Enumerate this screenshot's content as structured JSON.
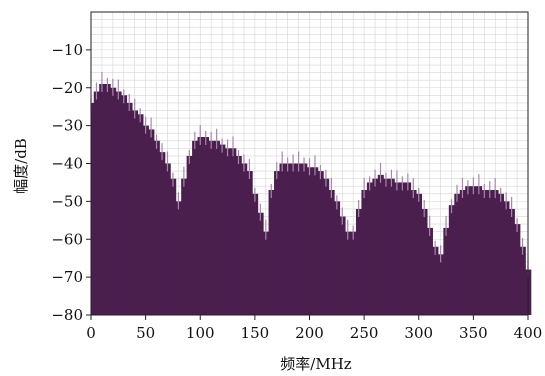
{
  "chart_data": {
    "type": "area",
    "xlabel": "频率/MHz",
    "ylabel": "幅度/dB",
    "xlim": [
      0,
      400
    ],
    "ylim": [
      -80,
      0
    ],
    "xticks": [
      0,
      50,
      100,
      150,
      200,
      250,
      300,
      350,
      400
    ],
    "yticks": [
      -10,
      -20,
      -30,
      -40,
      -50,
      -60,
      -70,
      -80
    ],
    "grid": true,
    "colors": {
      "fill": "#4a1f4e",
      "spikes": "#a985b0",
      "grid": "#d6d6d6"
    },
    "series": [
      {
        "x": [
          0,
          5,
          10,
          15,
          20,
          25,
          30,
          35,
          40,
          45,
          50,
          55,
          60,
          65,
          70,
          75,
          80,
          85,
          90,
          95,
          100,
          105,
          110,
          115,
          120,
          125,
          130,
          135,
          140,
          145,
          150,
          155,
          160,
          165,
          170,
          175,
          180,
          185,
          190,
          195,
          200,
          205,
          210,
          215,
          220,
          225,
          230,
          235,
          240,
          245,
          250,
          255,
          260,
          265,
          270,
          275,
          280,
          285,
          290,
          295,
          300,
          305,
          310,
          315,
          320,
          325,
          330,
          335,
          340,
          345,
          350,
          355,
          360,
          365,
          370,
          375,
          380,
          385,
          390,
          395,
          400
        ],
        "values": [
          -24,
          -21,
          -19,
          -19,
          -20,
          -21,
          -22,
          -24,
          -26,
          -27,
          -30,
          -31,
          -34,
          -37,
          -40,
          -44,
          -50,
          -44,
          -38,
          -34,
          -33,
          -33,
          -34,
          -34,
          -35,
          -36,
          -36,
          -38,
          -40,
          -42,
          -48,
          -53,
          -58,
          -47,
          -42,
          -40,
          -40,
          -40,
          -40,
          -40,
          -41,
          -41,
          -42,
          -44,
          -47,
          -50,
          -54,
          -58,
          -58,
          -52,
          -47,
          -45,
          -44,
          -43,
          -44,
          -44,
          -45,
          -45,
          -45,
          -47,
          -48,
          -52,
          -57,
          -62,
          -64,
          -57,
          -51,
          -48,
          -47,
          -46,
          -46,
          -46,
          -47,
          -47,
          -47,
          -48,
          -50,
          -52,
          -56,
          -62,
          -68
        ]
      }
    ]
  }
}
